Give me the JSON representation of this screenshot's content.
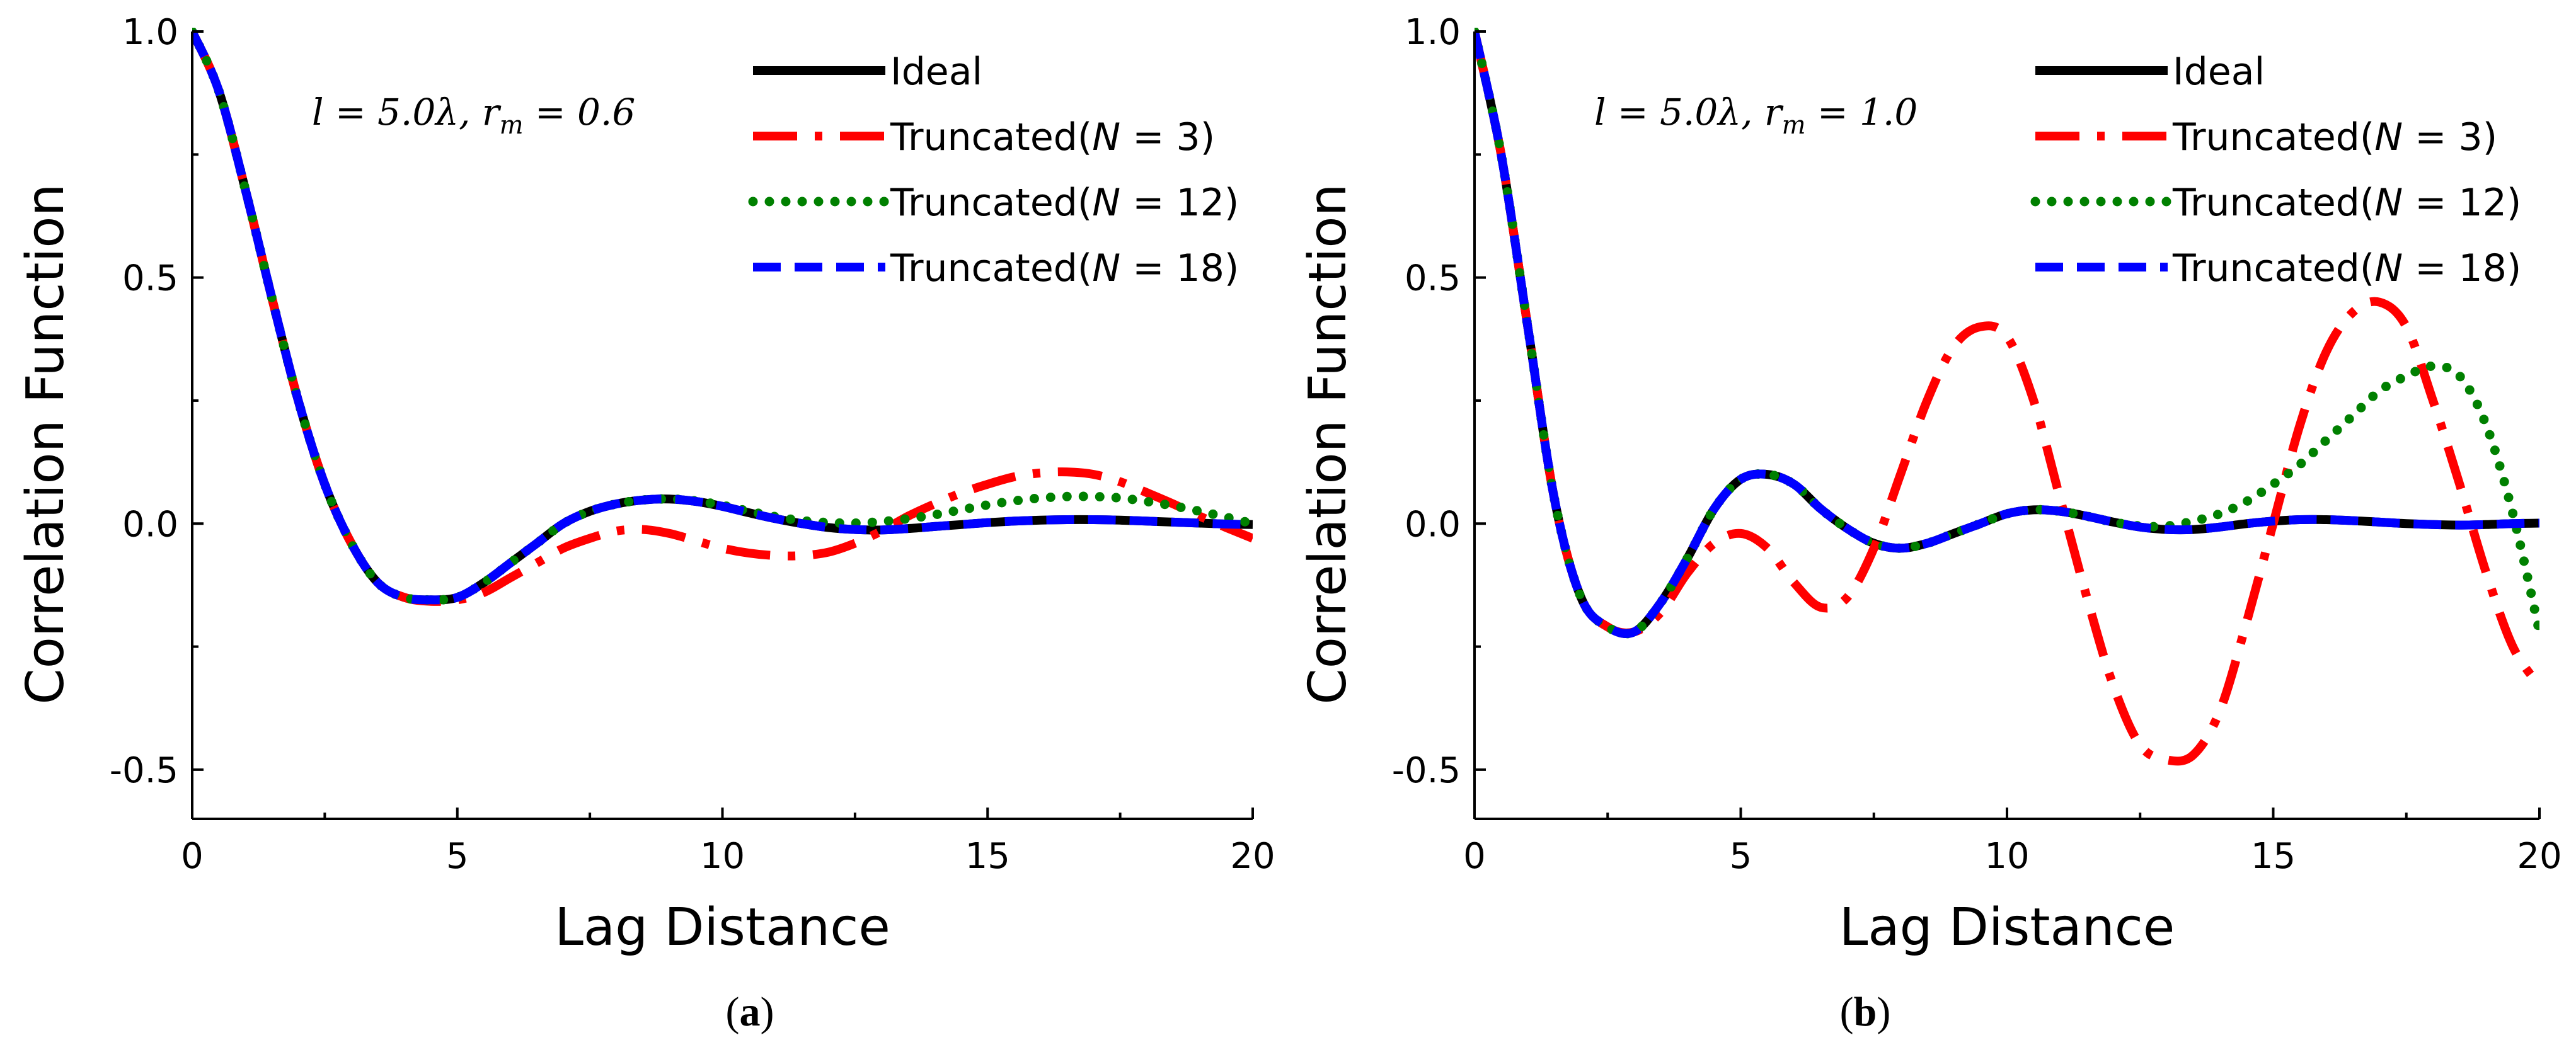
{
  "chart_data": [
    {
      "type": "line",
      "panel": "a",
      "caption_open": "(",
      "caption_letter": "a",
      "caption_close": ")",
      "xlabel": "Lag Distance",
      "ylabel": "Correlation Function",
      "xlim": [
        0,
        20
      ],
      "ylim": [
        -0.6,
        1.0
      ],
      "xticks": [
        0,
        5,
        10,
        15,
        20
      ],
      "xtick_labels": [
        "0",
        "5",
        "10",
        "15",
        "20"
      ],
      "yticks": [
        -0.5,
        0.0,
        0.5,
        1.0
      ],
      "ytick_labels": [
        "-0.5",
        "0.0",
        "0.5",
        "1.0"
      ],
      "annotation": "l = 5.0λ, r_m = 0.6",
      "legend": {
        "position": "top-right"
      },
      "series": [
        {
          "name": "Ideal",
          "color": "#000000",
          "style": "solid",
          "x": [
            0,
            0.5,
            1,
            1.5,
            2,
            2.5,
            3,
            3.5,
            4,
            4.5,
            5,
            5.5,
            6,
            6.5,
            7,
            7.5,
            8,
            8.5,
            9,
            9.5,
            10,
            10.5,
            11,
            11.5,
            12,
            12.5,
            13,
            13.5,
            14,
            14.5,
            15,
            15.5,
            16,
            16.5,
            17,
            17.5,
            18,
            18.5,
            19,
            19.5,
            20
          ],
          "values": [
            1.0,
            0.88,
            0.68,
            0.46,
            0.25,
            0.08,
            -0.04,
            -0.12,
            -0.15,
            -0.155,
            -0.15,
            -0.12,
            -0.08,
            -0.04,
            0.0,
            0.025,
            0.04,
            0.048,
            0.05,
            0.045,
            0.035,
            0.022,
            0.01,
            0.0,
            -0.008,
            -0.012,
            -0.013,
            -0.01,
            -0.006,
            -0.002,
            0.002,
            0.005,
            0.007,
            0.008,
            0.008,
            0.007,
            0.005,
            0.003,
            0.001,
            -0.001,
            -0.002
          ]
        },
        {
          "name": "Truncated(N = 3)",
          "label_prefix": "Truncated(",
          "label_var": "N",
          "label_suffix": " = 3)",
          "color": "#ff0000",
          "style": "dashdot",
          "x": [
            0,
            0.5,
            1,
            1.5,
            2,
            2.5,
            3,
            3.5,
            4,
            4.5,
            5,
            5.5,
            6,
            6.5,
            7,
            7.5,
            8,
            8.5,
            9,
            9.5,
            10,
            10.5,
            11,
            11.5,
            12,
            12.5,
            13,
            13.5,
            14,
            14.5,
            15,
            15.5,
            16,
            16.5,
            17,
            17.5,
            18,
            18.5,
            19,
            19.5,
            20
          ],
          "values": [
            1.0,
            0.88,
            0.68,
            0.46,
            0.25,
            0.08,
            -0.04,
            -0.12,
            -0.15,
            -0.158,
            -0.155,
            -0.14,
            -0.11,
            -0.08,
            -0.05,
            -0.03,
            -0.015,
            -0.012,
            -0.02,
            -0.035,
            -0.05,
            -0.06,
            -0.065,
            -0.065,
            -0.058,
            -0.04,
            -0.015,
            0.015,
            0.04,
            0.062,
            0.08,
            0.095,
            0.103,
            0.105,
            0.1,
            0.085,
            0.063,
            0.04,
            0.015,
            -0.008,
            -0.03
          ]
        },
        {
          "name": "Truncated(N = 12)",
          "label_prefix": "Truncated(",
          "label_var": "N",
          "label_suffix": " = 12)",
          "color": "#008000",
          "style": "dotted",
          "x": [
            0,
            0.5,
            1,
            1.5,
            2,
            2.5,
            3,
            3.5,
            4,
            4.5,
            5,
            5.5,
            6,
            6.5,
            7,
            7.5,
            8,
            8.5,
            9,
            9.5,
            10,
            10.5,
            11,
            11.5,
            12,
            12.5,
            13,
            13.5,
            14,
            14.5,
            15,
            15.5,
            16,
            16.5,
            17,
            17.5,
            18,
            18.5,
            19,
            19.5,
            20
          ],
          "values": [
            1.0,
            0.88,
            0.68,
            0.46,
            0.25,
            0.08,
            -0.04,
            -0.12,
            -0.15,
            -0.155,
            -0.15,
            -0.12,
            -0.08,
            -0.04,
            0.0,
            0.025,
            0.04,
            0.048,
            0.05,
            0.046,
            0.037,
            0.025,
            0.014,
            0.006,
            0.002,
            0.001,
            0.004,
            0.01,
            0.018,
            0.028,
            0.038,
            0.046,
            0.052,
            0.055,
            0.055,
            0.052,
            0.045,
            0.036,
            0.025,
            0.013,
            0.0
          ]
        },
        {
          "name": "Truncated(N = 18)",
          "label_prefix": "Truncated(",
          "label_var": "N",
          "label_suffix": " = 18)",
          "color": "#0000ff",
          "style": "dashed",
          "x": [
            0,
            0.5,
            1,
            1.5,
            2,
            2.5,
            3,
            3.5,
            4,
            4.5,
            5,
            5.5,
            6,
            6.5,
            7,
            7.5,
            8,
            8.5,
            9,
            9.5,
            10,
            10.5,
            11,
            11.5,
            12,
            12.5,
            13,
            13.5,
            14,
            14.5,
            15,
            15.5,
            16,
            16.5,
            17,
            17.5,
            18,
            18.5,
            19,
            19.5,
            20
          ],
          "values": [
            1.0,
            0.88,
            0.68,
            0.46,
            0.25,
            0.08,
            -0.04,
            -0.12,
            -0.15,
            -0.155,
            -0.15,
            -0.12,
            -0.08,
            -0.04,
            0.0,
            0.025,
            0.04,
            0.048,
            0.05,
            0.045,
            0.035,
            0.022,
            0.01,
            0.0,
            -0.008,
            -0.012,
            -0.013,
            -0.01,
            -0.006,
            -0.002,
            0.002,
            0.005,
            0.007,
            0.008,
            0.008,
            0.007,
            0.005,
            0.003,
            0.001,
            -0.001,
            -0.002
          ]
        }
      ]
    },
    {
      "type": "line",
      "panel": "b",
      "caption_open": "(",
      "caption_letter": "b",
      "caption_close": ")",
      "xlabel": "Lag Distance",
      "ylabel": "Correlation Function",
      "xlim": [
        0,
        20
      ],
      "ylim": [
        -0.6,
        1.0
      ],
      "xticks": [
        0,
        5,
        10,
        15,
        20
      ],
      "xtick_labels": [
        "0",
        "5",
        "10",
        "15",
        "20"
      ],
      "yticks": [
        -0.5,
        0.0,
        0.5,
        1.0
      ],
      "ytick_labels": [
        "-0.5",
        "0.0",
        "0.5",
        "1.0"
      ],
      "annotation": "l = 5.0λ, r_m = 1.0",
      "legend": {
        "position": "top-right"
      },
      "series": [
        {
          "name": "Ideal",
          "color": "#000000",
          "style": "solid",
          "x": [
            0,
            0.5,
            1,
            1.5,
            2,
            2.5,
            3,
            3.5,
            4,
            4.5,
            5,
            5.5,
            6,
            6.5,
            7,
            7.5,
            8,
            8.5,
            9,
            9.5,
            10,
            10.5,
            11,
            11.5,
            12,
            12.5,
            13,
            13.5,
            14,
            14.5,
            15,
            15.5,
            16,
            16.5,
            17,
            17.5,
            18,
            18.5,
            19,
            19.5,
            20
          ],
          "values": [
            1.0,
            0.75,
            0.4,
            0.05,
            -0.15,
            -0.21,
            -0.22,
            -0.16,
            -0.07,
            0.03,
            0.09,
            0.1,
            0.08,
            0.03,
            -0.01,
            -0.04,
            -0.05,
            -0.04,
            -0.02,
            0.0,
            0.02,
            0.028,
            0.025,
            0.015,
            0.003,
            -0.007,
            -0.012,
            -0.012,
            -0.007,
            0.0,
            0.005,
            0.008,
            0.008,
            0.006,
            0.003,
            0.0,
            -0.002,
            -0.003,
            -0.002,
            0.0,
            0.001
          ]
        },
        {
          "name": "Truncated(N = 3)",
          "label_prefix": "Truncated(",
          "label_var": "N",
          "label_suffix": " = 3)",
          "color": "#ff0000",
          "style": "dashdot",
          "x": [
            0,
            0.5,
            1,
            1.5,
            2,
            2.5,
            3,
            3.5,
            4,
            4.5,
            5,
            5.5,
            6,
            6.5,
            7,
            7.5,
            8,
            8.5,
            9,
            9.5,
            10,
            10.5,
            11,
            11.5,
            12,
            12.5,
            13,
            13.5,
            14,
            14.5,
            15,
            15.5,
            16,
            16.5,
            17,
            17.5,
            18,
            18.5,
            19,
            19.5,
            20
          ],
          "values": [
            1.0,
            0.75,
            0.4,
            0.05,
            -0.15,
            -0.21,
            -0.22,
            -0.18,
            -0.1,
            -0.04,
            -0.02,
            -0.05,
            -0.12,
            -0.17,
            -0.15,
            -0.05,
            0.1,
            0.25,
            0.36,
            0.4,
            0.38,
            0.25,
            0.05,
            -0.15,
            -0.33,
            -0.45,
            -0.48,
            -0.47,
            -0.38,
            -0.2,
            0.0,
            0.2,
            0.35,
            0.43,
            0.45,
            0.4,
            0.25,
            0.08,
            -0.1,
            -0.25,
            -0.33
          ]
        },
        {
          "name": "Truncated(N = 12)",
          "label_prefix": "Truncated(",
          "label_var": "N",
          "label_suffix": " = 12)",
          "color": "#008000",
          "style": "dotted",
          "x": [
            0,
            0.5,
            1,
            1.5,
            2,
            2.5,
            3,
            3.5,
            4,
            4.5,
            5,
            5.5,
            6,
            6.5,
            7,
            7.5,
            8,
            8.5,
            9,
            9.5,
            10,
            10.5,
            11,
            11.5,
            12,
            12.5,
            13,
            13.5,
            14,
            14.5,
            15,
            15.5,
            16,
            16.5,
            17,
            17.5,
            18,
            18.5,
            19,
            19.5,
            20
          ],
          "values": [
            1.0,
            0.75,
            0.4,
            0.05,
            -0.15,
            -0.21,
            -0.22,
            -0.16,
            -0.07,
            0.03,
            0.09,
            0.1,
            0.08,
            0.03,
            -0.01,
            -0.04,
            -0.05,
            -0.04,
            -0.02,
            0.0,
            0.02,
            0.028,
            0.025,
            0.015,
            0.003,
            -0.005,
            -0.005,
            0.005,
            0.02,
            0.045,
            0.08,
            0.12,
            0.17,
            0.22,
            0.27,
            0.3,
            0.32,
            0.3,
            0.2,
            0.02,
            -0.22
          ]
        },
        {
          "name": "Truncated(N = 18)",
          "label_prefix": "Truncated(",
          "label_var": "N",
          "label_suffix": " = 18)",
          "color": "#0000ff",
          "style": "dashed",
          "x": [
            0,
            0.5,
            1,
            1.5,
            2,
            2.5,
            3,
            3.5,
            4,
            4.5,
            5,
            5.5,
            6,
            6.5,
            7,
            7.5,
            8,
            8.5,
            9,
            9.5,
            10,
            10.5,
            11,
            11.5,
            12,
            12.5,
            13,
            13.5,
            14,
            14.5,
            15,
            15.5,
            16,
            16.5,
            17,
            17.5,
            18,
            18.5,
            19,
            19.5,
            20
          ],
          "values": [
            1.0,
            0.75,
            0.4,
            0.05,
            -0.15,
            -0.21,
            -0.22,
            -0.16,
            -0.07,
            0.03,
            0.09,
            0.1,
            0.08,
            0.03,
            -0.01,
            -0.04,
            -0.05,
            -0.04,
            -0.02,
            0.0,
            0.02,
            0.028,
            0.025,
            0.015,
            0.003,
            -0.007,
            -0.012,
            -0.012,
            -0.007,
            0.0,
            0.005,
            0.008,
            0.008,
            0.006,
            0.003,
            0.0,
            -0.002,
            -0.003,
            -0.002,
            0.0,
            0.001
          ]
        }
      ]
    }
  ]
}
